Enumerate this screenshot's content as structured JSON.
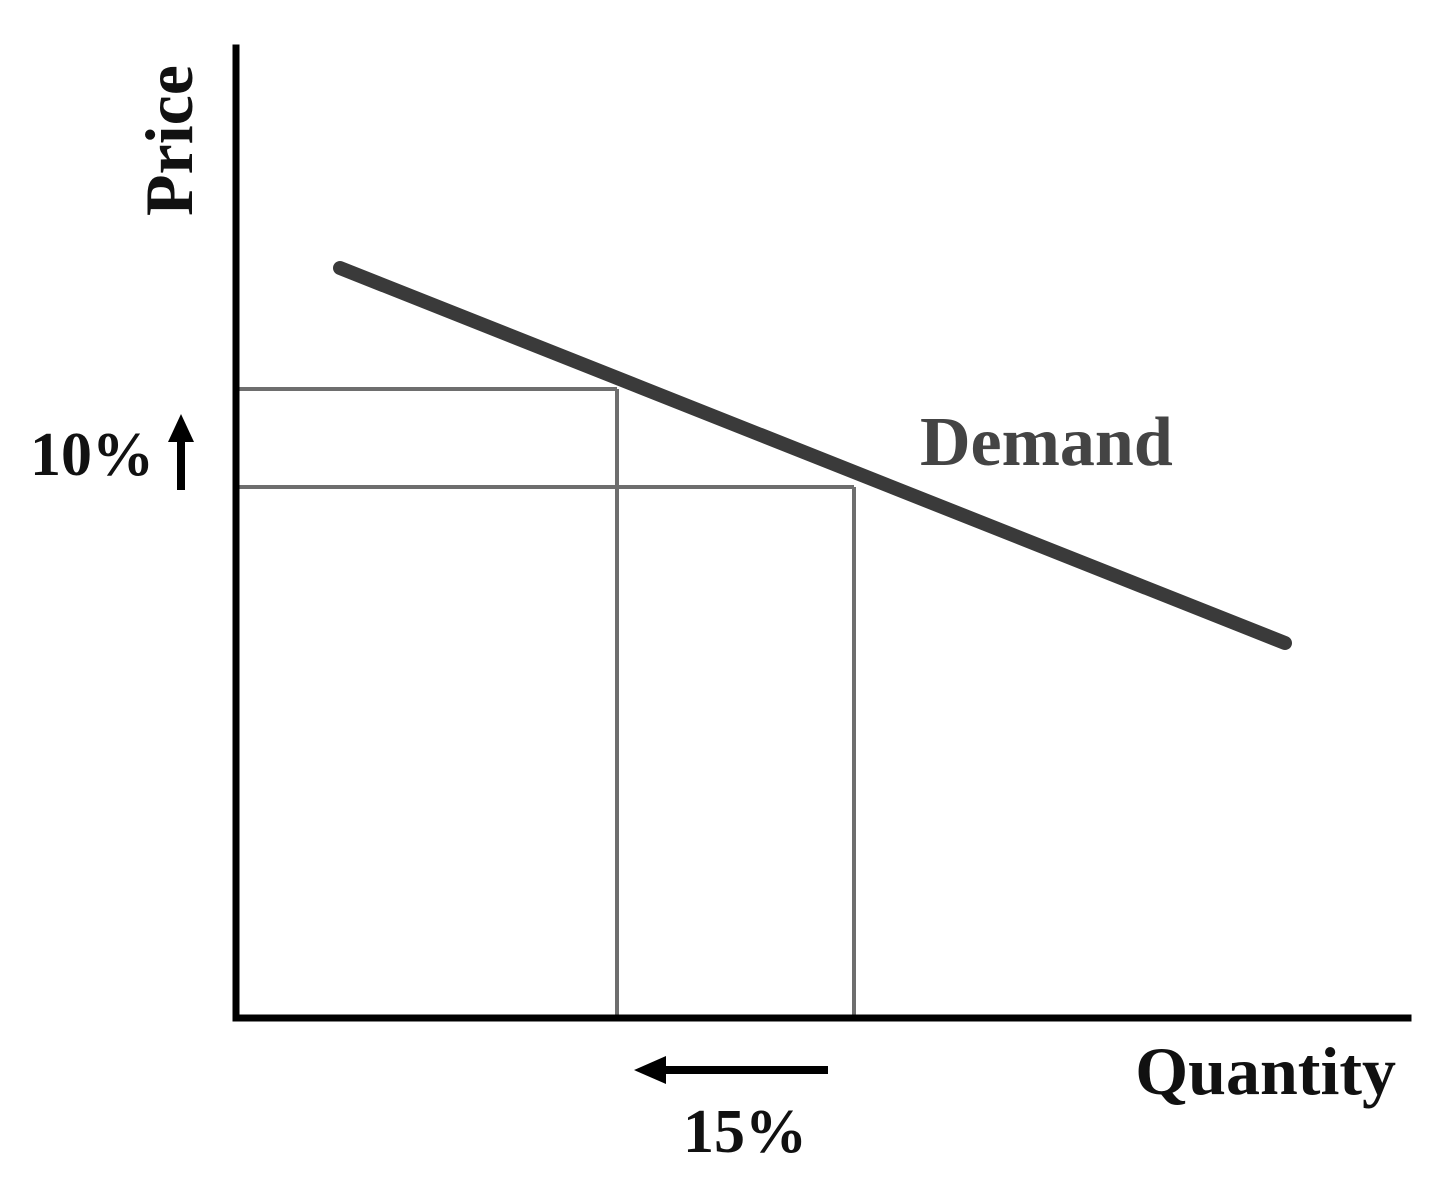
{
  "diagram": {
    "y_axis_label": "Price",
    "x_axis_label": "Quantity",
    "curve_label": "Demand",
    "price_change_label": "10%",
    "quantity_change_label": "15%",
    "price_change_direction": "up",
    "quantity_change_direction": "left"
  },
  "colors": {
    "axis": "#000000",
    "curve": "#3a3a3a",
    "guide_lines": "#6e6e6e",
    "arrows": "#000000"
  }
}
